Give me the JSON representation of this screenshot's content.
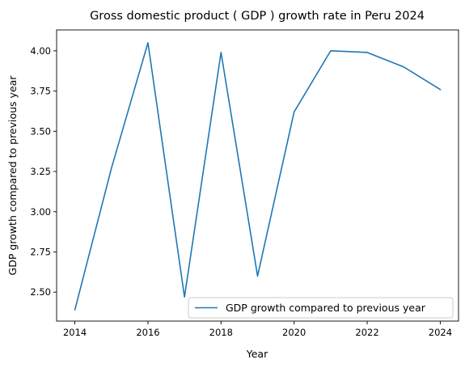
{
  "chart_data": {
    "type": "line",
    "title": "Gross domestic product ( GDP ) growth rate in Peru 2024",
    "xlabel": "Year",
    "ylabel": "GDP growth compared to previous year",
    "x": [
      2014,
      2015,
      2016,
      2017,
      2018,
      2019,
      2020,
      2021,
      2022,
      2023,
      2024
    ],
    "series": [
      {
        "name": "GDP growth compared to previous year",
        "color": "#1f77b4",
        "values": [
          2.39,
          3.27,
          4.05,
          2.47,
          3.99,
          2.6,
          3.62,
          4.0,
          3.99,
          3.9,
          3.76
        ]
      }
    ],
    "xlim": [
      2013.5,
      2024.5
    ],
    "ylim": [
      2.32,
      4.13
    ],
    "xticks": [
      2014,
      2016,
      2018,
      2020,
      2022,
      2024
    ],
    "yticks": [
      "2.50",
      "2.75",
      "3.00",
      "3.25",
      "3.50",
      "3.75",
      "4.00"
    ],
    "grid": false,
    "legend_position": "lower-right"
  }
}
